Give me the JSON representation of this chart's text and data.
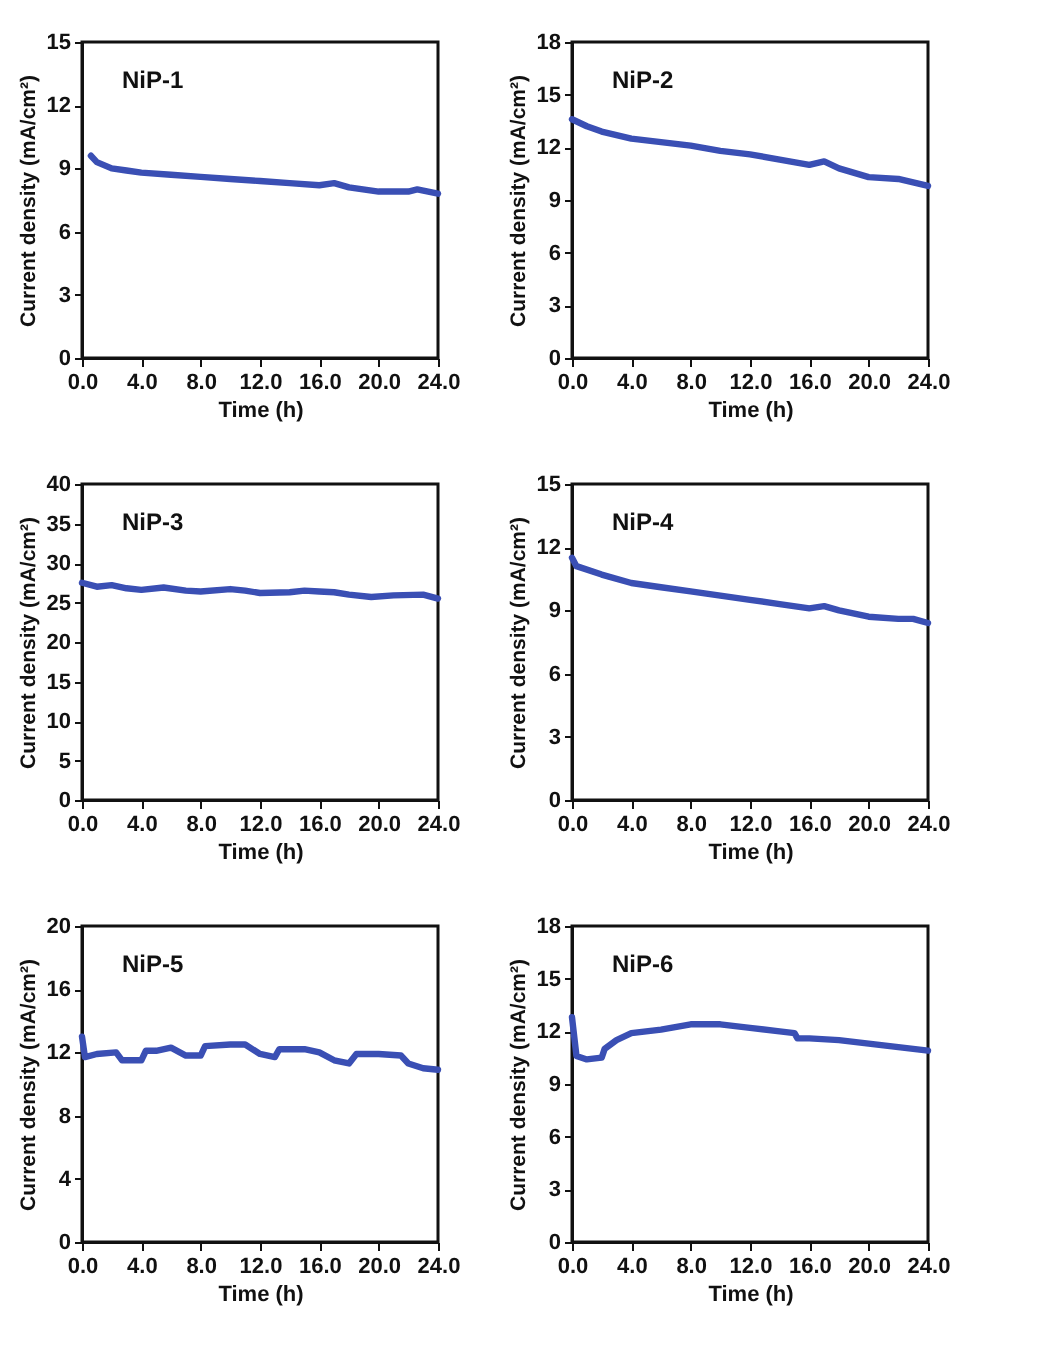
{
  "chart_data": [
    {
      "type": "line",
      "annotations": [
        "NiP-1"
      ],
      "xlabel": "Time (h)",
      "ylabel": "Current density (mA/cm²)",
      "xlim": [
        0,
        24
      ],
      "xticks": [
        {
          "value": 0,
          "label": "0.0"
        },
        {
          "value": 4,
          "label": "4.0"
        },
        {
          "value": 8,
          "label": "8.0"
        },
        {
          "value": 12,
          "label": "12.0"
        },
        {
          "value": 16,
          "label": "16.0"
        },
        {
          "value": 20,
          "label": "20.0"
        },
        {
          "value": 24,
          "label": "24.0"
        }
      ],
      "ylim": [
        0,
        15
      ],
      "yticks": [
        0,
        3,
        6,
        9,
        12,
        15
      ],
      "grid": false,
      "x": [
        0.6,
        1,
        2,
        3,
        4,
        6,
        8,
        10,
        12,
        14,
        16,
        17,
        18,
        20,
        22,
        22.6,
        24
      ],
      "series": [
        {
          "color": "#3a4fb4",
          "values": [
            9.6,
            9.3,
            9.0,
            8.9,
            8.8,
            8.7,
            8.6,
            8.5,
            8.4,
            8.3,
            8.2,
            8.3,
            8.1,
            7.9,
            7.9,
            8.0,
            7.8
          ]
        }
      ]
    },
    {
      "type": "line",
      "annotations": [
        "NiP-2"
      ],
      "xlabel": "Time (h)",
      "ylabel": "Current density (mA/cm²)",
      "xlim": [
        0,
        24
      ],
      "xticks": [
        {
          "value": 0,
          "label": "0.0"
        },
        {
          "value": 4,
          "label": "4.0"
        },
        {
          "value": 8,
          "label": "8.0"
        },
        {
          "value": 12,
          "label": "12.0"
        },
        {
          "value": 16,
          "label": "16.0"
        },
        {
          "value": 20,
          "label": "20.0"
        },
        {
          "value": 24,
          "label": "24.0"
        }
      ],
      "ylim": [
        0,
        18
      ],
      "yticks": [
        0,
        3,
        6,
        9,
        12,
        15,
        18
      ],
      "grid": false,
      "x": [
        0,
        1,
        2,
        4,
        6,
        8,
        10,
        12,
        14,
        16,
        17,
        18,
        20,
        22,
        24
      ],
      "series": [
        {
          "color": "#3a4fb4",
          "values": [
            13.6,
            13.2,
            12.9,
            12.5,
            12.3,
            12.1,
            11.8,
            11.6,
            11.3,
            11.0,
            11.2,
            10.8,
            10.3,
            10.2,
            9.8
          ]
        }
      ]
    },
    {
      "type": "line",
      "annotations": [
        "NiP-3"
      ],
      "xlabel": "Time (h)",
      "ylabel": "Current density (mA/cm²)",
      "xlim": [
        0,
        24
      ],
      "xticks": [
        {
          "value": 0,
          "label": "0.0"
        },
        {
          "value": 4,
          "label": "4.0"
        },
        {
          "value": 8,
          "label": "8.0"
        },
        {
          "value": 12,
          "label": "12.0"
        },
        {
          "value": 16,
          "label": "16.0"
        },
        {
          "value": 20,
          "label": "20.0"
        },
        {
          "value": 24,
          "label": "24.0"
        }
      ],
      "ylim": [
        0,
        40
      ],
      "yticks": [
        0,
        5,
        10,
        15,
        20,
        25,
        30,
        35,
        40
      ],
      "grid": false,
      "x": [
        0,
        1,
        2,
        3,
        4,
        5.5,
        7,
        8,
        10,
        11,
        12,
        14,
        15,
        16,
        17,
        18,
        19.5,
        21,
        23,
        24
      ],
      "series": [
        {
          "color": "#3a4fb4",
          "values": [
            27.5,
            27.0,
            27.2,
            26.8,
            26.6,
            26.9,
            26.5,
            26.4,
            26.7,
            26.5,
            26.2,
            26.3,
            26.5,
            26.4,
            26.3,
            26.0,
            25.7,
            25.9,
            26.0,
            25.5
          ]
        }
      ]
    },
    {
      "type": "line",
      "annotations": [
        "NiP-4"
      ],
      "xlabel": "Time (h)",
      "ylabel": "Current density (mA/cm²)",
      "xlim": [
        0,
        24
      ],
      "xticks": [
        {
          "value": 0,
          "label": "0.0"
        },
        {
          "value": 4,
          "label": "4.0"
        },
        {
          "value": 8,
          "label": "8.0"
        },
        {
          "value": 12,
          "label": "12.0"
        },
        {
          "value": 16,
          "label": "16.0"
        },
        {
          "value": 20,
          "label": "20.0"
        },
        {
          "value": 24,
          "label": "24.0"
        }
      ],
      "ylim": [
        0,
        15
      ],
      "yticks": [
        0,
        3,
        6,
        9,
        12,
        15
      ],
      "grid": false,
      "x": [
        0,
        0.3,
        2,
        4,
        6,
        8,
        10,
        12,
        14,
        16,
        17,
        18,
        20,
        22,
        23,
        24
      ],
      "series": [
        {
          "color": "#3a4fb4",
          "values": [
            11.5,
            11.1,
            10.7,
            10.3,
            10.1,
            9.9,
            9.7,
            9.5,
            9.3,
            9.1,
            9.2,
            9.0,
            8.7,
            8.6,
            8.6,
            8.4
          ]
        }
      ]
    },
    {
      "type": "line",
      "annotations": [
        "NiP-5"
      ],
      "xlabel": "Time (h)",
      "ylabel": "Current density (mA/cm²)",
      "xlim": [
        0,
        24
      ],
      "xticks": [
        {
          "value": 0,
          "label": "0.0"
        },
        {
          "value": 4,
          "label": "4.0"
        },
        {
          "value": 8,
          "label": "8.0"
        },
        {
          "value": 12,
          "label": "12.0"
        },
        {
          "value": 16,
          "label": "16.0"
        },
        {
          "value": 20,
          "label": "20.0"
        },
        {
          "value": 24,
          "label": "24.0"
        }
      ],
      "ylim": [
        0,
        20
      ],
      "yticks": [
        0,
        4,
        8,
        12,
        16,
        20
      ],
      "grid": false,
      "x": [
        0,
        0.2,
        1,
        2.3,
        2.7,
        4,
        4.3,
        5,
        6,
        7,
        8,
        8.3,
        10,
        11,
        12,
        13,
        13.3,
        15,
        16,
        17,
        18,
        18.5,
        20,
        21.5,
        22,
        23,
        24
      ],
      "series": [
        {
          "color": "#3a4fb4",
          "values": [
            13.0,
            11.7,
            11.9,
            12.0,
            11.5,
            11.5,
            12.1,
            12.1,
            12.3,
            11.8,
            11.8,
            12.4,
            12.5,
            12.5,
            11.9,
            11.7,
            12.2,
            12.2,
            12.0,
            11.5,
            11.3,
            11.9,
            11.9,
            11.8,
            11.3,
            11.0,
            10.9
          ]
        }
      ]
    },
    {
      "type": "line",
      "annotations": [
        "NiP-6"
      ],
      "xlabel": "Time (h)",
      "ylabel": "Current density (mA/cm²)",
      "xlim": [
        0,
        24
      ],
      "xticks": [
        {
          "value": 0,
          "label": "0.0"
        },
        {
          "value": 4,
          "label": "4.0"
        },
        {
          "value": 8,
          "label": "8.0"
        },
        {
          "value": 12,
          "label": "12.0"
        },
        {
          "value": 16,
          "label": "16.0"
        },
        {
          "value": 20,
          "label": "20.0"
        },
        {
          "value": 24,
          "label": "24.0"
        }
      ],
      "ylim": [
        0,
        18
      ],
      "yticks": [
        0,
        3,
        6,
        9,
        12,
        15,
        18
      ],
      "grid": false,
      "x": [
        0,
        0.3,
        1,
        2,
        2.2,
        3,
        4,
        6,
        8,
        10,
        12,
        14,
        15,
        15.2,
        16,
        18,
        20,
        22,
        24
      ],
      "series": [
        {
          "color": "#3a4fb4",
          "values": [
            12.8,
            10.6,
            10.4,
            10.5,
            11.0,
            11.5,
            11.9,
            12.1,
            12.4,
            12.4,
            12.2,
            12.0,
            11.9,
            11.6,
            11.6,
            11.5,
            11.3,
            11.1,
            10.9
          ]
        }
      ]
    }
  ]
}
